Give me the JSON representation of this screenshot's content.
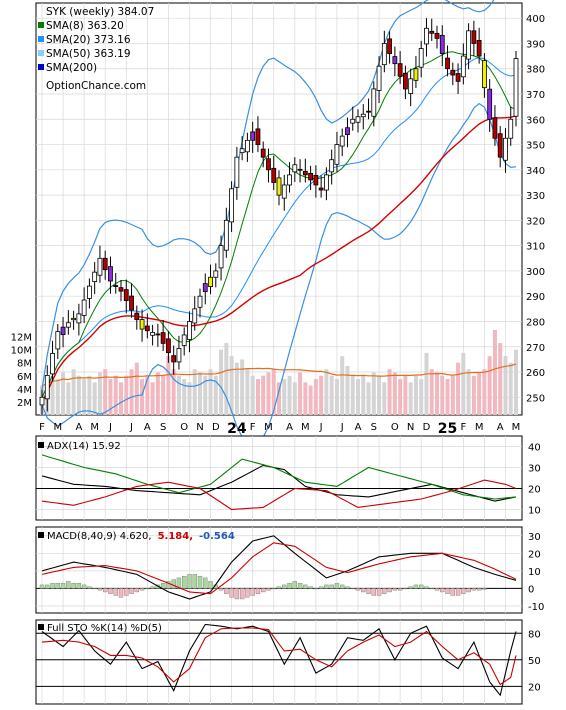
{
  "chart_data": [
    {
      "type": "candlestick",
      "title": "SYK (weekly) 384.07",
      "source": "OptionChance.com",
      "legend": [
        {
          "label": "SMA(8) 363.20",
          "color": "#008000"
        },
        {
          "label": "SMA(20) 373.16",
          "color": "#1e90ff"
        },
        {
          "label": "SMA(50) 363.19",
          "color": "#87cefa"
        },
        {
          "label": "SMA(200)",
          "color": "#0000cc"
        }
      ],
      "x_labels": [
        "F",
        "M",
        "A",
        "M",
        "J",
        "J",
        "A",
        "S",
        "O",
        "N",
        "D",
        "24",
        "F",
        "M",
        "A",
        "M",
        "J",
        "J",
        "A",
        "S",
        "O",
        "N",
        "D",
        "25",
        "F",
        "M",
        "A",
        "M"
      ],
      "y_ticks": [
        250,
        260,
        270,
        280,
        290,
        300,
        310,
        320,
        330,
        340,
        350,
        360,
        370,
        380,
        390,
        400
      ],
      "ylim": [
        243,
        406
      ],
      "volume_ticks": [
        "2M",
        "4M",
        "6M",
        "8M",
        "10M",
        "12M"
      ],
      "volume_ylim": [
        0,
        13
      ],
      "close_anchors": [
        [
          0,
          250
        ],
        [
          3,
          276
        ],
        [
          7,
          283
        ],
        [
          11,
          305
        ],
        [
          13,
          296
        ],
        [
          15,
          292
        ],
        [
          19,
          277
        ],
        [
          22,
          275
        ],
        [
          25,
          264
        ],
        [
          28,
          280
        ],
        [
          31,
          295
        ],
        [
          33,
          300
        ],
        [
          35,
          320
        ],
        [
          37,
          345
        ],
        [
          40,
          355
        ],
        [
          42,
          345
        ],
        [
          45,
          330
        ],
        [
          48,
          342
        ],
        [
          51,
          336
        ],
        [
          53,
          332
        ],
        [
          56,
          350
        ],
        [
          59,
          360
        ],
        [
          62,
          363
        ],
        [
          65,
          390
        ],
        [
          67,
          382
        ],
        [
          69,
          372
        ],
        [
          71,
          380
        ],
        [
          73,
          396
        ],
        [
          75,
          392
        ],
        [
          77,
          380
        ],
        [
          79,
          375
        ],
        [
          81,
          395
        ],
        [
          83,
          385
        ],
        [
          85,
          360
        ],
        [
          87,
          345
        ],
        [
          89,
          360
        ],
        [
          90,
          384
        ]
      ],
      "volume_values": [
        4.5,
        5,
        6,
        5.5,
        6.5,
        5,
        7,
        6,
        5.5,
        6,
        5,
        6.5,
        7,
        5.5,
        6,
        5,
        6,
        7,
        8,
        5.5,
        6,
        5,
        6.5,
        6,
        9,
        7,
        6,
        5.5,
        5,
        7,
        6.5,
        6,
        7,
        6,
        10,
        11,
        9,
        8,
        8.5,
        7,
        6,
        5.5,
        6,
        6.5,
        7,
        5,
        5.5,
        6,
        5,
        6.5,
        5,
        4.5,
        5.5,
        6,
        7,
        6,
        5.5,
        9,
        7.5,
        6,
        5.5,
        6,
        5,
        6.5,
        6,
        5,
        7,
        6.5,
        5.5,
        6,
        5,
        6,
        5.5,
        9.5,
        7,
        6.5,
        6,
        5.5,
        6,
        8,
        9.5,
        7,
        6,
        6.5,
        7,
        9,
        13,
        11,
        9,
        8,
        10
      ]
    },
    {
      "type": "line",
      "title": "ADX(14) 15.92",
      "y_ticks": [
        10,
        20,
        30,
        40
      ],
      "ylim": [
        5,
        45
      ],
      "series": [
        {
          "name": "ADX(14)",
          "color": "#000000",
          "anchors": [
            [
              0,
              26
            ],
            [
              6,
              22
            ],
            [
              12,
              21
            ],
            [
              18,
              19
            ],
            [
              24,
              18
            ],
            [
              30,
              17
            ],
            [
              36,
              23
            ],
            [
              42,
              31
            ],
            [
              46,
              29
            ],
            [
              50,
              21
            ],
            [
              56,
              17
            ],
            [
              62,
              16
            ],
            [
              68,
              19
            ],
            [
              74,
              22
            ],
            [
              80,
              18
            ],
            [
              86,
              14
            ],
            [
              90,
              16
            ]
          ]
        },
        {
          "name": "+DI",
          "color": "#008000",
          "anchors": [
            [
              0,
              36
            ],
            [
              8,
              30
            ],
            [
              14,
              27
            ],
            [
              20,
              22
            ],
            [
              26,
              18
            ],
            [
              32,
              22
            ],
            [
              38,
              34
            ],
            [
              44,
              30
            ],
            [
              50,
              23
            ],
            [
              56,
              21
            ],
            [
              62,
              30
            ],
            [
              68,
              26
            ],
            [
              74,
              22
            ],
            [
              80,
              17
            ],
            [
              86,
              15
            ],
            [
              90,
              16
            ]
          ]
        },
        {
          "name": "-DI",
          "color": "#cc0000",
          "anchors": [
            [
              0,
              14
            ],
            [
              6,
              12
            ],
            [
              12,
              16
            ],
            [
              18,
              21
            ],
            [
              24,
              23
            ],
            [
              30,
              20
            ],
            [
              36,
              10
            ],
            [
              42,
              11
            ],
            [
              48,
              20
            ],
            [
              54,
              19
            ],
            [
              60,
              11
            ],
            [
              66,
              13
            ],
            [
              72,
              15
            ],
            [
              78,
              19
            ],
            [
              84,
              24
            ],
            [
              88,
              22
            ],
            [
              90,
              20
            ]
          ]
        }
      ],
      "reference_line": 20
    },
    {
      "type": "line",
      "title": "MACD(8,40,9) 4.620, 5.184, -0.564",
      "values_text": {
        "macd": "MACD(8,40,9) 4.620,",
        "signal": "5.184,",
        "histogram": "-0.564"
      },
      "y_ticks": [
        -10,
        0,
        10,
        20,
        30
      ],
      "ylim": [
        -14,
        35
      ],
      "series": [
        {
          "name": "MACD(8,40,9)",
          "color": "#000000",
          "anchors": [
            [
              0,
              10
            ],
            [
              6,
              15
            ],
            [
              12,
              12
            ],
            [
              18,
              8
            ],
            [
              24,
              -2
            ],
            [
              28,
              -6
            ],
            [
              32,
              -2
            ],
            [
              36,
              15
            ],
            [
              40,
              27
            ],
            [
              44,
              30
            ],
            [
              48,
              20
            ],
            [
              54,
              6
            ],
            [
              58,
              10
            ],
            [
              64,
              18
            ],
            [
              70,
              20
            ],
            [
              76,
              20
            ],
            [
              82,
              12
            ],
            [
              86,
              8
            ],
            [
              90,
              4.6
            ]
          ]
        },
        {
          "name": "Signal",
          "color": "#cc0000",
          "anchors": [
            [
              0,
              8
            ],
            [
              6,
              12
            ],
            [
              12,
              13
            ],
            [
              18,
              10
            ],
            [
              24,
              3
            ],
            [
              28,
              -2
            ],
            [
              32,
              -3
            ],
            [
              36,
              6
            ],
            [
              40,
              18
            ],
            [
              44,
              26
            ],
            [
              48,
              24
            ],
            [
              54,
              12
            ],
            [
              58,
              9
            ],
            [
              64,
              14
            ],
            [
              70,
              18
            ],
            [
              76,
              20
            ],
            [
              82,
              16
            ],
            [
              86,
              11
            ],
            [
              90,
              5.2
            ]
          ]
        }
      ],
      "histogram": [
        2,
        2,
        3,
        3,
        3,
        4,
        3,
        3,
        2,
        1,
        0,
        -1,
        -2,
        -3,
        -4,
        -5,
        -4,
        -3,
        -2,
        -1,
        0,
        1,
        2,
        3,
        4,
        5,
        6,
        7,
        8,
        8,
        7,
        6,
        4,
        2,
        -1,
        -3,
        -5,
        -6,
        -6,
        -5,
        -4,
        -3,
        -2,
        -1,
        0,
        1,
        2,
        3,
        4,
        3,
        2,
        1,
        0,
        1,
        2,
        2,
        3,
        2,
        1,
        0,
        -1,
        -2,
        -3,
        -4,
        -4,
        -3,
        -2,
        -1,
        -1,
        0,
        1,
        2,
        2,
        1,
        0,
        -1,
        -2,
        -3,
        -4,
        -4,
        -3,
        -2,
        -1,
        -1,
        -0.6
      ]
    },
    {
      "type": "line",
      "title": "Full STO %K(14) %D(5)",
      "y_ticks": [
        20,
        50,
        80
      ],
      "ylim": [
        0,
        95
      ],
      "series": [
        {
          "name": "%K(14)",
          "color": "#000000",
          "anchors": [
            [
              0,
              82
            ],
            [
              4,
              65
            ],
            [
              7,
              83
            ],
            [
              10,
              60
            ],
            [
              13,
              45
            ],
            [
              16,
              70
            ],
            [
              19,
              40
            ],
            [
              22,
              48
            ],
            [
              25,
              15
            ],
            [
              28,
              60
            ],
            [
              31,
              90
            ],
            [
              34,
              88
            ],
            [
              37,
              85
            ],
            [
              40,
              88
            ],
            [
              43,
              82
            ],
            [
              46,
              45
            ],
            [
              49,
              75
            ],
            [
              52,
              35
            ],
            [
              55,
              45
            ],
            [
              58,
              75
            ],
            [
              61,
              72
            ],
            [
              64,
              85
            ],
            [
              67,
              50
            ],
            [
              70,
              80
            ],
            [
              73,
              88
            ],
            [
              76,
              52
            ],
            [
              79,
              40
            ],
            [
              82,
              70
            ],
            [
              85,
              25
            ],
            [
              87,
              10
            ],
            [
              89,
              60
            ],
            [
              90,
              82
            ]
          ]
        },
        {
          "name": "%D(5)",
          "color": "#cc0000",
          "anchors": [
            [
              0,
              70
            ],
            [
              4,
              72
            ],
            [
              7,
              70
            ],
            [
              10,
              65
            ],
            [
              13,
              55
            ],
            [
              16,
              55
            ],
            [
              19,
              52
            ],
            [
              22,
              42
            ],
            [
              25,
              25
            ],
            [
              28,
              40
            ],
            [
              31,
              75
            ],
            [
              34,
              85
            ],
            [
              37,
              86
            ],
            [
              40,
              86
            ],
            [
              43,
              84
            ],
            [
              46,
              60
            ],
            [
              49,
              62
            ],
            [
              52,
              50
            ],
            [
              55,
              42
            ],
            [
              58,
              60
            ],
            [
              61,
              70
            ],
            [
              64,
              78
            ],
            [
              67,
              65
            ],
            [
              70,
              70
            ],
            [
              73,
              82
            ],
            [
              76,
              65
            ],
            [
              79,
              50
            ],
            [
              82,
              58
            ],
            [
              85,
              45
            ],
            [
              87,
              22
            ],
            [
              89,
              30
            ],
            [
              90,
              55
            ]
          ]
        }
      ],
      "reference_lines": [
        20,
        50,
        80
      ]
    }
  ]
}
